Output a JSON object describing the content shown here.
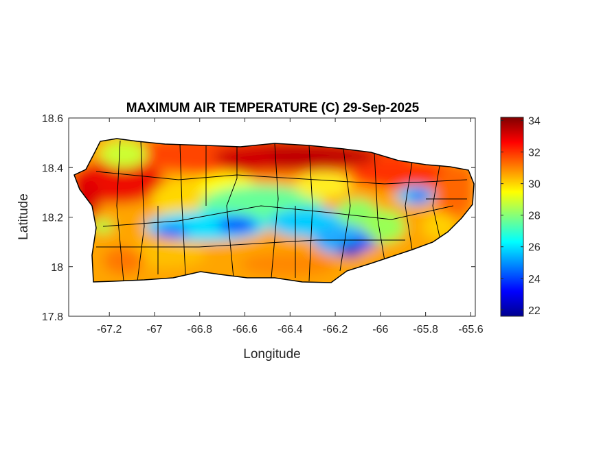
{
  "chart_data": {
    "type": "heatmap",
    "title": "MAXIMUM AIR TEMPERATURE (C) 29-Sep-2025",
    "xlabel": "Longitude",
    "ylabel": "Latitude",
    "xlim": [
      -67.38,
      -65.58
    ],
    "ylim": [
      17.8,
      18.6
    ],
    "xticks": [
      "-67.2",
      "-67",
      "-66.8",
      "-66.6",
      "-66.4",
      "-66.2",
      "-66",
      "-65.8",
      "-65.6"
    ],
    "xtick_values": [
      -67.2,
      -67,
      -66.8,
      -66.6,
      -66.4,
      -66.2,
      -66,
      -65.8,
      -65.6
    ],
    "yticks": [
      "18.6",
      "18.4",
      "18.2",
      "18",
      "17.8"
    ],
    "ytick_values": [
      18.6,
      18.4,
      18.2,
      18,
      17.8
    ],
    "colorbar": {
      "colormap": "jet",
      "range": [
        21.6,
        34.2
      ],
      "ticks": [
        "34",
        "32",
        "30",
        "28",
        "26",
        "24",
        "22"
      ],
      "tick_values": [
        34,
        32,
        30,
        28,
        26,
        24,
        22
      ]
    },
    "grid": false
  }
}
